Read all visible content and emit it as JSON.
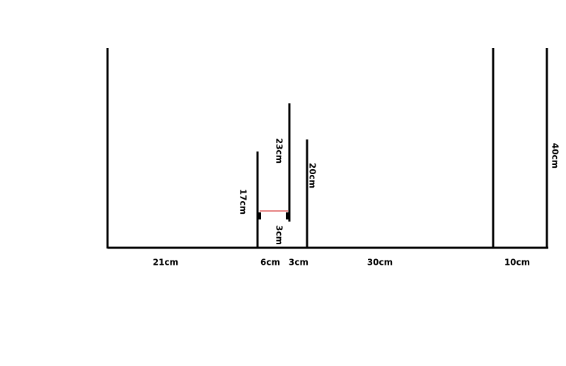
{
  "horizontal_labels": [
    "21cm",
    "6cm",
    "3cm",
    "30cm",
    "10cm"
  ],
  "vertical_labels": [
    "17cm",
    "23cm",
    "3cm",
    "20cm",
    "40cm"
  ]
}
